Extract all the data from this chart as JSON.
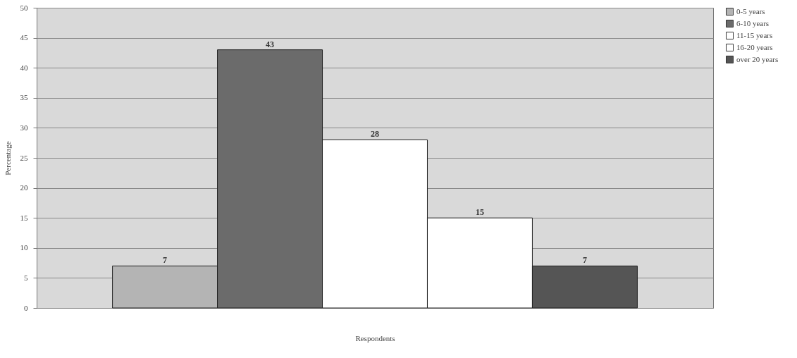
{
  "chart_data": {
    "type": "bar",
    "xlabel": "Respondents",
    "ylabel": "Percentage",
    "categories": [
      null
    ],
    "series": [
      {
        "name": "0-5 years",
        "color": "#b4b4b4",
        "values": [
          7
        ]
      },
      {
        "name": "6-10 years",
        "color": "#6b6b6b",
        "values": [
          43
        ]
      },
      {
        "name": "11-15 years",
        "color": "#ffffff",
        "values": [
          28
        ]
      },
      {
        "name": "16-20 years",
        "color": "#ffffff",
        "values": [
          15
        ]
      },
      {
        "name": "over 20 years",
        "color": "#555555",
        "values": [
          7
        ]
      }
    ],
    "ylim": [
      0,
      50
    ],
    "yticks": [
      0,
      5,
      10,
      15,
      20,
      25,
      30,
      35,
      40,
      45,
      50
    ],
    "grid": "y",
    "legend": "right",
    "data_labels": true
  }
}
